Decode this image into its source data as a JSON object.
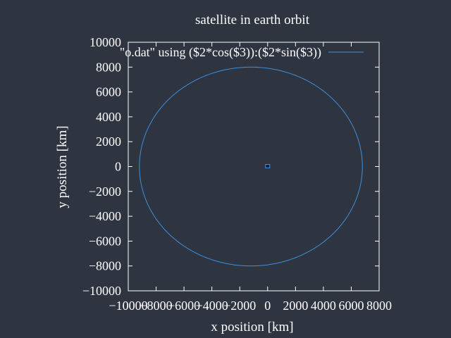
{
  "chart_data": {
    "type": "line",
    "title": "satellite in earth orbit",
    "xlabel": "x position [km]",
    "ylabel": "y position [km]",
    "xlim": [
      -10000,
      8000
    ],
    "ylim": [
      -10000,
      10000
    ],
    "xticks": [
      -10000,
      -8000,
      -6000,
      -4000,
      -2000,
      0,
      2000,
      4000,
      6000,
      8000
    ],
    "yticks": [
      -10000,
      -8000,
      -6000,
      -4000,
      -2000,
      0,
      2000,
      4000,
      6000,
      8000,
      10000
    ],
    "xtick_labels": [
      "−10000",
      "−8000",
      "−6000",
      "−4000",
      "−2000",
      "0",
      "2000",
      "4000",
      "6000",
      "8000"
    ],
    "ytick_labels": [
      "−10000",
      "−8000",
      "−6000",
      "−4000",
      "−2000",
      "0",
      "2000",
      "4000",
      "6000",
      "8000",
      "10000"
    ],
    "legend_position": "top-right",
    "grid": false,
    "series": [
      {
        "name": "\"o.dat\" using ($2*cos($3)):($2*sin($3))",
        "color": "#3d8fe0",
        "orbit": {
          "perigee": 6800,
          "apogee": 9200,
          "semi_minor": 8000
        }
      }
    ],
    "earth_marker": {
      "x": 0,
      "y": 0,
      "color": "#3d8fe0"
    }
  }
}
